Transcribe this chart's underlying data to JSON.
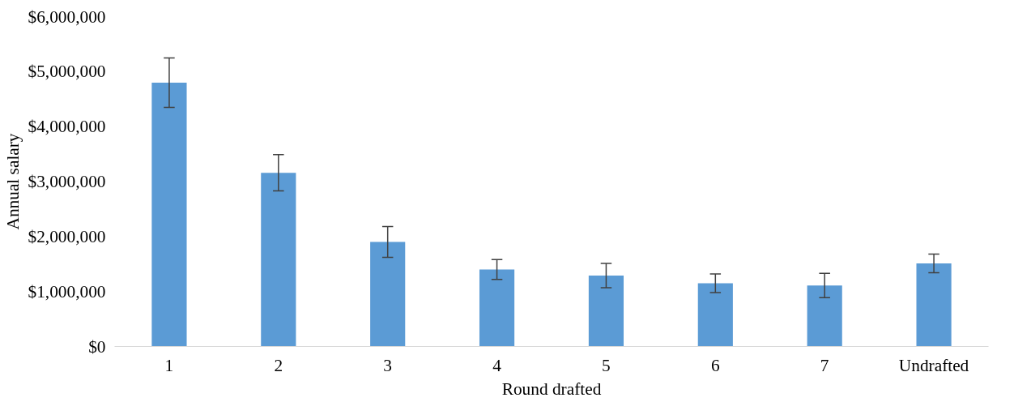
{
  "chart_data": {
    "type": "bar",
    "xlabel": "Round drafted",
    "ylabel": "Annual salary",
    "categories": [
      "1",
      "2",
      "3",
      "4",
      "5",
      "6",
      "7",
      "Undrafted"
    ],
    "values": [
      4800000,
      3160000,
      1900000,
      1400000,
      1290000,
      1150000,
      1110000,
      1510000
    ],
    "errors": [
      450000,
      330000,
      280000,
      180000,
      220000,
      170000,
      220000,
      170000
    ],
    "color": "#5b9bd5",
    "ylim": [
      0,
      6000000
    ],
    "yticks": [
      {
        "value": 0,
        "label": "$0"
      },
      {
        "value": 1000000,
        "label": "$1,000,000"
      },
      {
        "value": 2000000,
        "label": "$2,000,000"
      },
      {
        "value": 3000000,
        "label": "$3,000,000"
      },
      {
        "value": 4000000,
        "label": "$4,000,000"
      },
      {
        "value": 5000000,
        "label": "$5,000,000"
      },
      {
        "value": 6000000,
        "label": "$6,000,000"
      }
    ],
    "grid": false
  }
}
